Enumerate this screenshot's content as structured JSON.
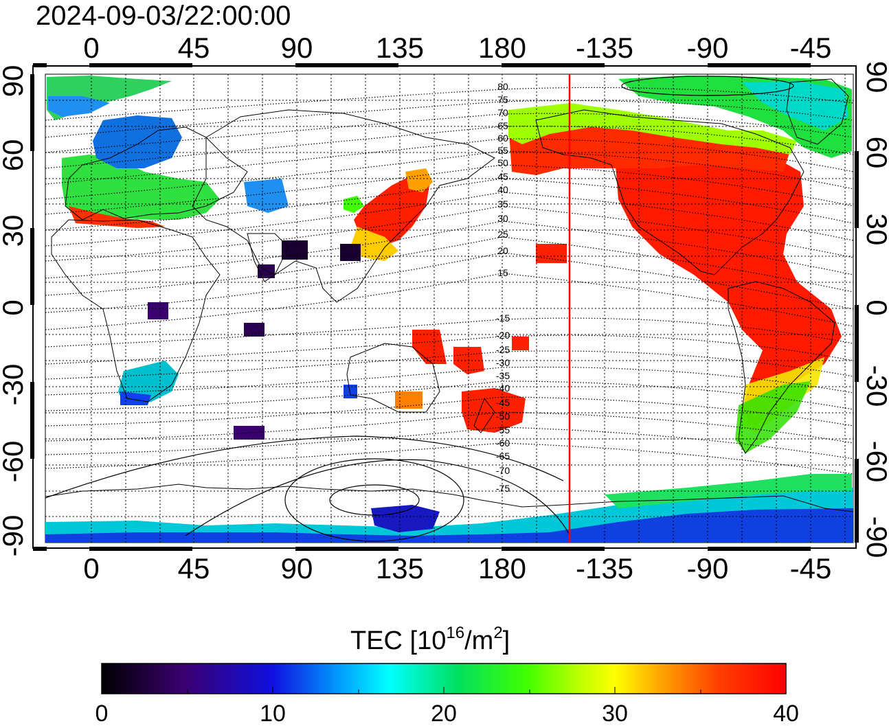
{
  "timestamp": "2024-09-03/22:00:00",
  "map": {
    "lon_ticks_top": [
      "0",
      "45",
      "90",
      "135",
      "180",
      "-135",
      "-90",
      "-45"
    ],
    "lon_ticks_bottom": [
      "0",
      "45",
      "90",
      "135",
      "180",
      "-135",
      "-90",
      "-45"
    ],
    "lat_ticks_left": [
      "90",
      "60",
      "30",
      "0",
      "-30",
      "-60",
      "-90"
    ],
    "lat_ticks_right": [
      "90",
      "60",
      "30",
      "0",
      "-30",
      "-60",
      "-90"
    ],
    "contour_labels_north": [
      "80",
      "75",
      "70",
      "65",
      "60",
      "55",
      "50",
      "45",
      "40",
      "35",
      "30",
      "25",
      "20",
      "15"
    ],
    "contour_labels_south": [
      "-15",
      "-20",
      "-25",
      "-30",
      "-35",
      "-40",
      "-45",
      "-50",
      "-55",
      "-60",
      "-65",
      "-70",
      "-75"
    ],
    "terminator_color": "#ff0000",
    "grid": true
  },
  "colorbar": {
    "title": "TEC  [10",
    "title_sup": "16",
    "title_mid": "/m",
    "title_sup2": "2",
    "title_end": "]",
    "tick_labels": [
      "0",
      "10",
      "20",
      "30",
      "40"
    ],
    "range": [
      0,
      40
    ],
    "colors": [
      "#000000",
      "#3a0070",
      "#1010e0",
      "#00a0ff",
      "#00ffff",
      "#00e060",
      "#40ff00",
      "#c0ff00",
      "#ffff00",
      "#ffa000",
      "#ff4000",
      "#ff0000"
    ]
  },
  "icons": {
    "terminator": "terminator-line"
  }
}
